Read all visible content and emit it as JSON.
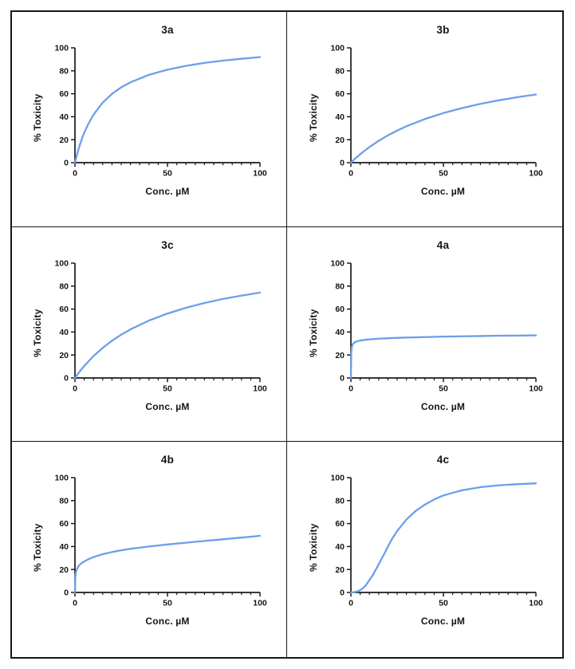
{
  "page": {
    "background": "#ffffff",
    "border_color": "#161616"
  },
  "chart_style": {
    "curve_color": "#6d9eeb",
    "axis_color": "#1c1c1c",
    "text_color": "#141414",
    "curve_width": 2.3
  },
  "chart_data": [
    {
      "id": "3a",
      "type": "line",
      "title": "3a",
      "xlabel": "Conc. µM",
      "ylabel": "% Toxicity",
      "xlim": [
        0,
        100
      ],
      "ylim": [
        0,
        100
      ],
      "x_ticks": [
        0,
        50,
        100
      ],
      "y_ticks": [
        0,
        20,
        40,
        60,
        80,
        100
      ],
      "x_minor_step": 5,
      "grid": false,
      "legend": "none",
      "series": [
        {
          "name": "3a",
          "x": [
            0,
            1,
            2,
            3,
            4,
            5,
            7,
            10,
            15,
            20,
            25,
            30,
            40,
            50,
            60,
            70,
            80,
            90,
            100
          ],
          "y": [
            0,
            6.5,
            12.2,
            17.3,
            21.9,
            26,
            33.1,
            41.7,
            52.3,
            59.9,
            65.6,
            70,
            76.5,
            81,
            84.3,
            86.9,
            88.9,
            90.5,
            91.9
          ]
        }
      ]
    },
    {
      "id": "3b",
      "type": "line",
      "title": "3b",
      "xlabel": "Conc. µM",
      "ylabel": "% Toxicity",
      "xlim": [
        0,
        100
      ],
      "ylim": [
        0,
        100
      ],
      "x_ticks": [
        0,
        50,
        100
      ],
      "y_ticks": [
        0,
        20,
        40,
        60,
        80,
        100
      ],
      "x_minor_step": 5,
      "grid": false,
      "legend": "none",
      "series": [
        {
          "name": "3b",
          "x": [
            0,
            1,
            2,
            3,
            5,
            7,
            10,
            15,
            20,
            25,
            30,
            40,
            50,
            60,
            70,
            80,
            90,
            100
          ],
          "y": [
            0,
            1.6,
            3.1,
            4.5,
            7.3,
            9.9,
            13.6,
            19,
            23.8,
            27.9,
            31.7,
            38,
            43.2,
            47.5,
            51.2,
            54.3,
            57,
            59.4
          ]
        }
      ]
    },
    {
      "id": "3c",
      "type": "line",
      "title": "3c",
      "xlabel": "Conc. µM",
      "ylabel": "% Toxicity",
      "xlim": [
        0,
        100
      ],
      "ylim": [
        0,
        100
      ],
      "x_ticks": [
        0,
        50,
        100
      ],
      "y_ticks": [
        0,
        20,
        40,
        60,
        80,
        100
      ],
      "x_minor_step": 5,
      "grid": false,
      "legend": "none",
      "series": [
        {
          "name": "3c",
          "x": [
            0,
            1,
            2,
            3,
            5,
            7,
            10,
            15,
            20,
            25,
            30,
            40,
            50,
            60,
            70,
            80,
            90,
            100
          ],
          "y": [
            0,
            2.2,
            4.4,
            6.5,
            10.4,
            13.9,
            19,
            26.2,
            32.4,
            37.7,
            42.3,
            50,
            56.1,
            61.1,
            65.3,
            68.8,
            71.7,
            74.3
          ]
        }
      ]
    },
    {
      "id": "4a",
      "type": "line",
      "title": "4a",
      "xlabel": "Conc. µM",
      "ylabel": "% Toxicity",
      "xlim": [
        0,
        100
      ],
      "ylim": [
        0,
        100
      ],
      "x_ticks": [
        0,
        50,
        100
      ],
      "y_ticks": [
        0,
        20,
        40,
        60,
        80,
        100
      ],
      "x_minor_step": 5,
      "grid": false,
      "legend": "none",
      "series": [
        {
          "name": "4a",
          "x": [
            0,
            0.2,
            0.5,
            1,
            2,
            3,
            5,
            8,
            10,
            15,
            20,
            30,
            40,
            50,
            60,
            70,
            80,
            90,
            100
          ],
          "y": [
            0,
            22,
            27,
            29.5,
            31,
            31.8,
            32.6,
            33.3,
            33.6,
            34.2,
            34.6,
            35.2,
            35.6,
            36,
            36.3,
            36.5,
            36.8,
            36.9,
            37.1
          ]
        }
      ]
    },
    {
      "id": "4b",
      "type": "line",
      "title": "4b",
      "xlabel": "Conc. µM",
      "ylabel": "% Toxicity",
      "xlim": [
        0,
        100
      ],
      "ylim": [
        0,
        100
      ],
      "x_ticks": [
        0,
        50,
        100
      ],
      "y_ticks": [
        0,
        20,
        40,
        60,
        80,
        100
      ],
      "x_minor_step": 5,
      "grid": false,
      "legend": "none",
      "series": [
        {
          "name": "4b",
          "x": [
            0,
            0.2,
            0.5,
            1,
            2,
            3,
            5,
            8,
            10,
            15,
            20,
            25,
            30,
            40,
            50,
            60,
            70,
            80,
            90,
            100
          ],
          "y": [
            0,
            14,
            17.5,
            20,
            23,
            24.8,
            27,
            29.5,
            30.8,
            33.3,
            35.2,
            36.7,
            38,
            40,
            41.8,
            43.3,
            44.9,
            46.3,
            47.8,
            49.3
          ]
        }
      ]
    },
    {
      "id": "4c",
      "type": "line",
      "title": "4c",
      "xlabel": "Conc. µM",
      "ylabel": "% Toxicity",
      "xlim": [
        0,
        100
      ],
      "ylim": [
        0,
        100
      ],
      "x_ticks": [
        0,
        50,
        100
      ],
      "y_ticks": [
        0,
        20,
        40,
        60,
        80,
        100
      ],
      "x_minor_step": 5,
      "grid": false,
      "legend": "none",
      "series": [
        {
          "name": "4c",
          "x": [
            0,
            2,
            4,
            6,
            8,
            10,
            12,
            14,
            16,
            18,
            20,
            22,
            25,
            28,
            30,
            35,
            40,
            45,
            50,
            60,
            70,
            80,
            90,
            100
          ],
          "y": [
            0,
            0.3,
            1.2,
            3,
            6,
            10.8,
            15.5,
            21.5,
            27.5,
            33.5,
            40,
            46,
            53.5,
            59.5,
            63.5,
            71,
            76.5,
            81,
            84.5,
            89,
            91.7,
            93.3,
            94.3,
            95
          ]
        }
      ]
    }
  ]
}
